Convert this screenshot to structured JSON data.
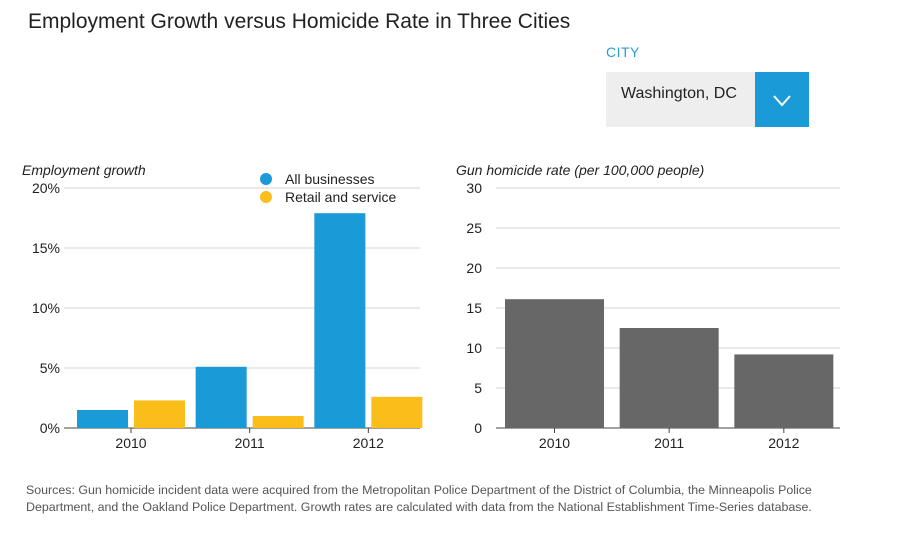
{
  "title": "Employment Growth versus Homicide Rate in Three Cities",
  "city_selector": {
    "label": "CITY",
    "selected": "Washington, DC",
    "icon": "chevron-down-icon"
  },
  "colors": {
    "all_businesses": "#1a9ad6",
    "retail": "#fbbd19",
    "homicide": "#676767",
    "accent": "#2a9cd8"
  },
  "chart_data": [
    {
      "type": "bar",
      "ylabel": "Employment growth",
      "categories": [
        "2010",
        "2011",
        "2012"
      ],
      "yticks": [
        "0%",
        "5%",
        "10%",
        "15%",
        "20%"
      ],
      "ylim": [
        0,
        20
      ],
      "legend": "top-center",
      "series": [
        {
          "name": "All businesses",
          "values": [
            1.5,
            5.1,
            17.9
          ]
        },
        {
          "name": "Retail and service",
          "values": [
            2.3,
            1.0,
            2.6
          ]
        }
      ]
    },
    {
      "type": "bar",
      "ylabel": "Gun homicide rate (per 100,000 people)",
      "categories": [
        "2010",
        "2011",
        "2012"
      ],
      "yticks": [
        "0",
        "5",
        "10",
        "15",
        "20",
        "25",
        "30"
      ],
      "ylim": [
        0,
        30
      ],
      "series": [
        {
          "values": [
            16.1,
            12.5,
            9.2
          ]
        }
      ]
    }
  ],
  "sources": "Sources: Gun homicide incident data were acquired from the Metropolitan Police Department of the District of Columbia, the Minneapolis Police Department, and the Oakland Police Department. Growth rates are calculated with data from the National Establishment Time-Series database."
}
